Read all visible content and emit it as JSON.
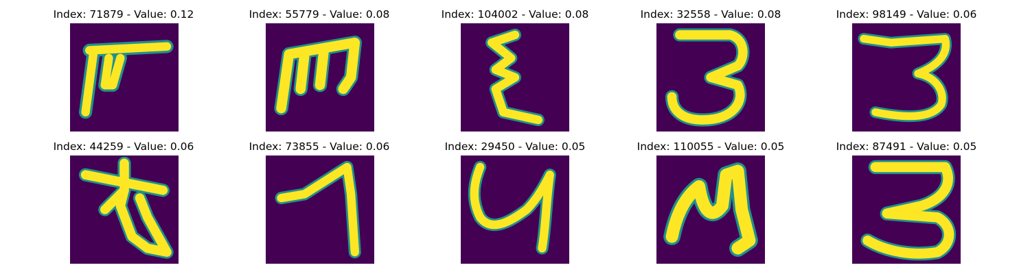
{
  "colors": {
    "background": "#440154",
    "stroke_mid": "#21918c",
    "stroke_core": "#fde725"
  },
  "panels": [
    {
      "title": "Index: 71879 - Value: 0.12",
      "glyph": "pi-like-icon"
    },
    {
      "title": "Index: 55779 - Value: 0.08",
      "glyph": "m-like-icon"
    },
    {
      "title": "Index: 104002 - Value: 0.08",
      "glyph": "epsilon-like-icon"
    },
    {
      "title": "Index: 32558 - Value: 0.08",
      "glyph": "three-like-icon"
    },
    {
      "title": "Index: 98149 - Value: 0.06",
      "glyph": "three-like-icon"
    },
    {
      "title": "Index: 44259 - Value: 0.06",
      "glyph": "crossed-loop-icon"
    },
    {
      "title": "Index: 73855 - Value: 0.06",
      "glyph": "seven-like-icon"
    },
    {
      "title": "Index: 29450 - Value: 0.05",
      "glyph": "y-like-icon"
    },
    {
      "title": "Index: 110055 - Value: 0.05",
      "glyph": "m-like-icon"
    },
    {
      "title": "Index: 87491 - Value: 0.05",
      "glyph": "three-like-icon"
    }
  ]
}
